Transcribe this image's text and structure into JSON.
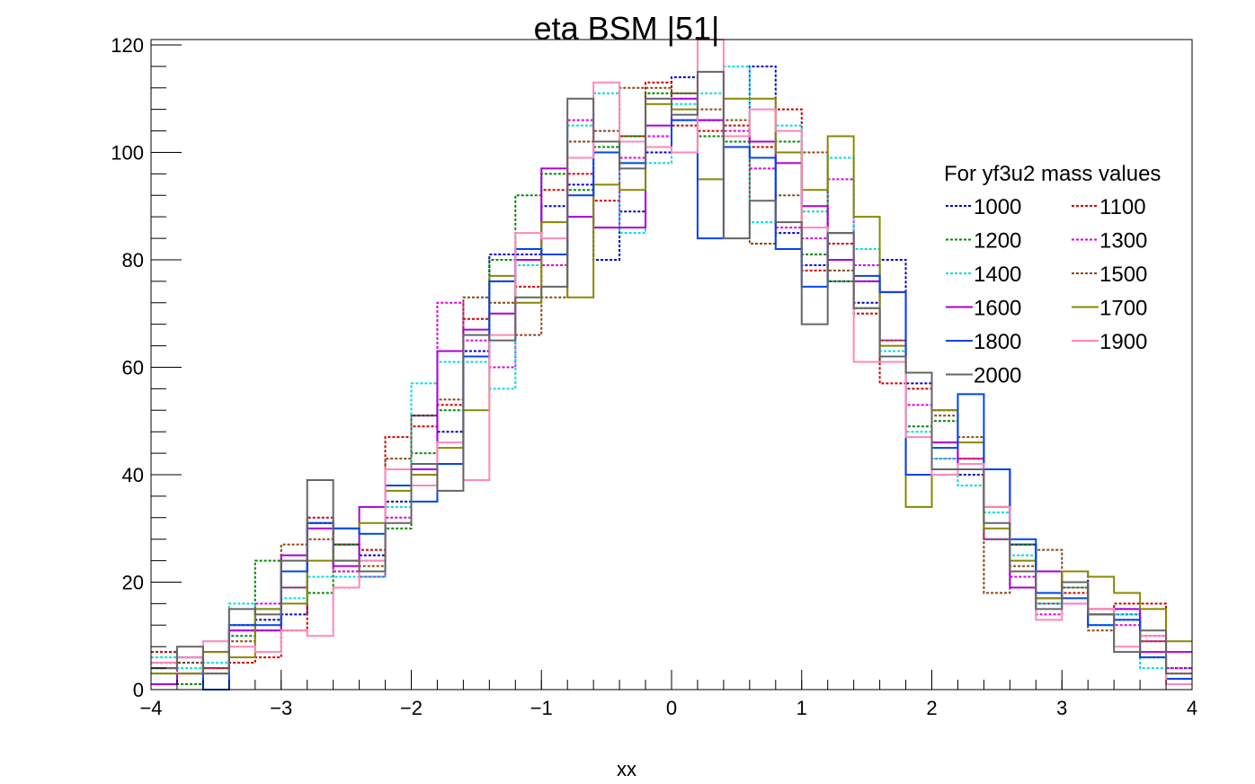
{
  "chart_data": {
    "type": "line",
    "title": "eta BSM |51|",
    "xlabel": "xx",
    "ylabel": "",
    "xlim": [
      -4,
      4
    ],
    "ylim": [
      0,
      121
    ],
    "grid": false,
    "bin_edges": [
      -4.0,
      -3.8,
      -3.6,
      -3.4,
      -3.2,
      -3.0,
      -2.8,
      -2.6,
      -2.4,
      -2.2,
      -2.0,
      -1.8,
      -1.6,
      -1.4,
      -1.2,
      -1.0,
      -0.8,
      -0.6,
      -0.4,
      -0.2,
      0.0,
      0.2,
      0.4,
      0.6,
      0.8,
      1.0,
      1.2,
      1.4,
      1.6,
      1.8,
      2.0,
      2.2,
      2.4,
      2.6,
      2.8,
      3.0,
      3.2,
      3.4,
      3.6,
      3.8,
      4.0
    ],
    "x_ticks": [
      "−4",
      "−3",
      "−2",
      "−1",
      "0",
      "1",
      "2",
      "3",
      "4"
    ],
    "x_tick_values": [
      -4,
      -3,
      -2,
      -1,
      0,
      1,
      2,
      3,
      4
    ],
    "y_ticks": [
      "0",
      "20",
      "40",
      "60",
      "80",
      "100",
      "120"
    ],
    "y_tick_values": [
      0,
      20,
      40,
      60,
      80,
      100,
      120
    ],
    "legend": {
      "header": "For yf3u2 mass values",
      "position": "right"
    },
    "series": [
      {
        "name": "1000",
        "color": "#0000cc",
        "dashed": true,
        "values": [
          5,
          5,
          4,
          12,
          13,
          14,
          31,
          27,
          25,
          35,
          51,
          48,
          63,
          81,
          81,
          90,
          94,
          80,
          89,
          100,
          114,
          106,
          103,
          116,
          85,
          79,
          76,
          72,
          80,
          57,
          52,
          40,
          34,
          27,
          17,
          22,
          15,
          14,
          10,
          4
        ]
      },
      {
        "name": "1100",
        "color": "#cc0000",
        "dashed": true,
        "values": [
          7,
          6,
          4,
          5,
          6,
          11,
          32,
          27,
          26,
          47,
          49,
          53,
          69,
          76,
          75,
          93,
          96,
          91,
          103,
          113,
          105,
          104,
          105,
          101,
          108,
          78,
          83,
          70,
          57,
          56,
          46,
          43,
          34,
          27,
          16,
          18,
          15,
          16,
          16,
          3
        ]
      },
      {
        "name": "1200",
        "color": "#008800",
        "dashed": true,
        "values": [
          3,
          1,
          3,
          10,
          24,
          19,
          18,
          27,
          24,
          30,
          44,
          52,
          62,
          80,
          92,
          96,
          93,
          101,
          103,
          111,
          111,
          103,
          102,
          102,
          102,
          81,
          76,
          71,
          61,
          49,
          50,
          42,
          28,
          27,
          17,
          19,
          14,
          13,
          6,
          2
        ]
      },
      {
        "name": "1300",
        "color": "#dd00dd",
        "dashed": true,
        "values": [
          4,
          3,
          4,
          11,
          16,
          19,
          31,
          22,
          21,
          32,
          38,
          72,
          65,
          60,
          80,
          79,
          106,
          86,
          99,
          103,
          106,
          106,
          104,
          97,
          86,
          84,
          95,
          79,
          65,
          53,
          43,
          43,
          28,
          21,
          14,
          16,
          14,
          12,
          9,
          4
        ]
      },
      {
        "name": "1400",
        "color": "#00dddd",
        "dashed": true,
        "values": [
          6,
          4,
          5,
          16,
          15,
          17,
          21,
          21,
          21,
          34,
          57,
          61,
          61,
          56,
          79,
          87,
          105,
          111,
          85,
          98,
          109,
          111,
          116,
          87,
          105,
          89,
          99,
          82,
          63,
          48,
          43,
          38,
          33,
          25,
          16,
          19,
          12,
          14,
          4,
          2
        ]
      },
      {
        "name": "1500",
        "color": "#8b4513",
        "dashed": true,
        "values": [
          5,
          5,
          4,
          9,
          11,
          27,
          28,
          24,
          23,
          43,
          51,
          54,
          73,
          72,
          66,
          73,
          102,
          104,
          112,
          112,
          111,
          108,
          106,
          83,
          92,
          100,
          78,
          76,
          65,
          40,
          51,
          47,
          18,
          23,
          26,
          19,
          11,
          15,
          9,
          2
        ]
      },
      {
        "name": "1600",
        "color": "#aa00dd",
        "dashed": false,
        "values": [
          1,
          3,
          7,
          11,
          11,
          25,
          30,
          23,
          34,
          38,
          41,
          63,
          67,
          70,
          80,
          97,
          88,
          86,
          86,
          105,
          110,
          106,
          103,
          102,
          98,
          90,
          80,
          76,
          74,
          40,
          46,
          42,
          41,
          19,
          22,
          20,
          14,
          15,
          7,
          7
        ]
      },
      {
        "name": "1700",
        "color": "#888800",
        "dashed": false,
        "values": [
          3,
          3,
          7,
          6,
          15,
          16,
          24,
          30,
          31,
          37,
          40,
          45,
          52,
          77,
          72,
          87,
          73,
          94,
          93,
          109,
          108,
          95,
          110,
          110,
          100,
          93,
          103,
          88,
          64,
          34,
          52,
          46,
          30,
          24,
          17,
          22,
          21,
          18,
          15,
          9
        ]
      },
      {
        "name": "1800",
        "color": "#0044ee",
        "dashed": false,
        "values": [
          4,
          6,
          0,
          12,
          12,
          22,
          31,
          30,
          29,
          38,
          35,
          42,
          62,
          76,
          82,
          81,
          92,
          100,
          98,
          101,
          106,
          84,
          101,
          99,
          82,
          75,
          85,
          77,
          74,
          40,
          45,
          55,
          41,
          28,
          18,
          17,
          12,
          13,
          6,
          2
        ]
      },
      {
        "name": "1900",
        "color": "#ff88bb",
        "dashed": false,
        "values": [
          5,
          6,
          9,
          8,
          7,
          11,
          10,
          19,
          24,
          41,
          38,
          46,
          39,
          66,
          85,
          84,
          99,
          113,
          102,
          101,
          100,
          127,
          103,
          108,
          104,
          86,
          85,
          61,
          61,
          47,
          40,
          42,
          34,
          22,
          13,
          16,
          15,
          8,
          10,
          1
        ]
      },
      {
        "name": "2000",
        "color": "#666666",
        "dashed": false,
        "values": [
          4,
          8,
          3,
          15,
          14,
          24,
          39,
          24,
          22,
          31,
          42,
          37,
          66,
          65,
          73,
          75,
          110,
          102,
          97,
          110,
          107,
          115,
          84,
          91,
          87,
          68,
          85,
          71,
          62,
          59,
          41,
          41,
          31,
          22,
          15,
          20,
          14,
          7,
          11,
          3
        ]
      }
    ]
  }
}
